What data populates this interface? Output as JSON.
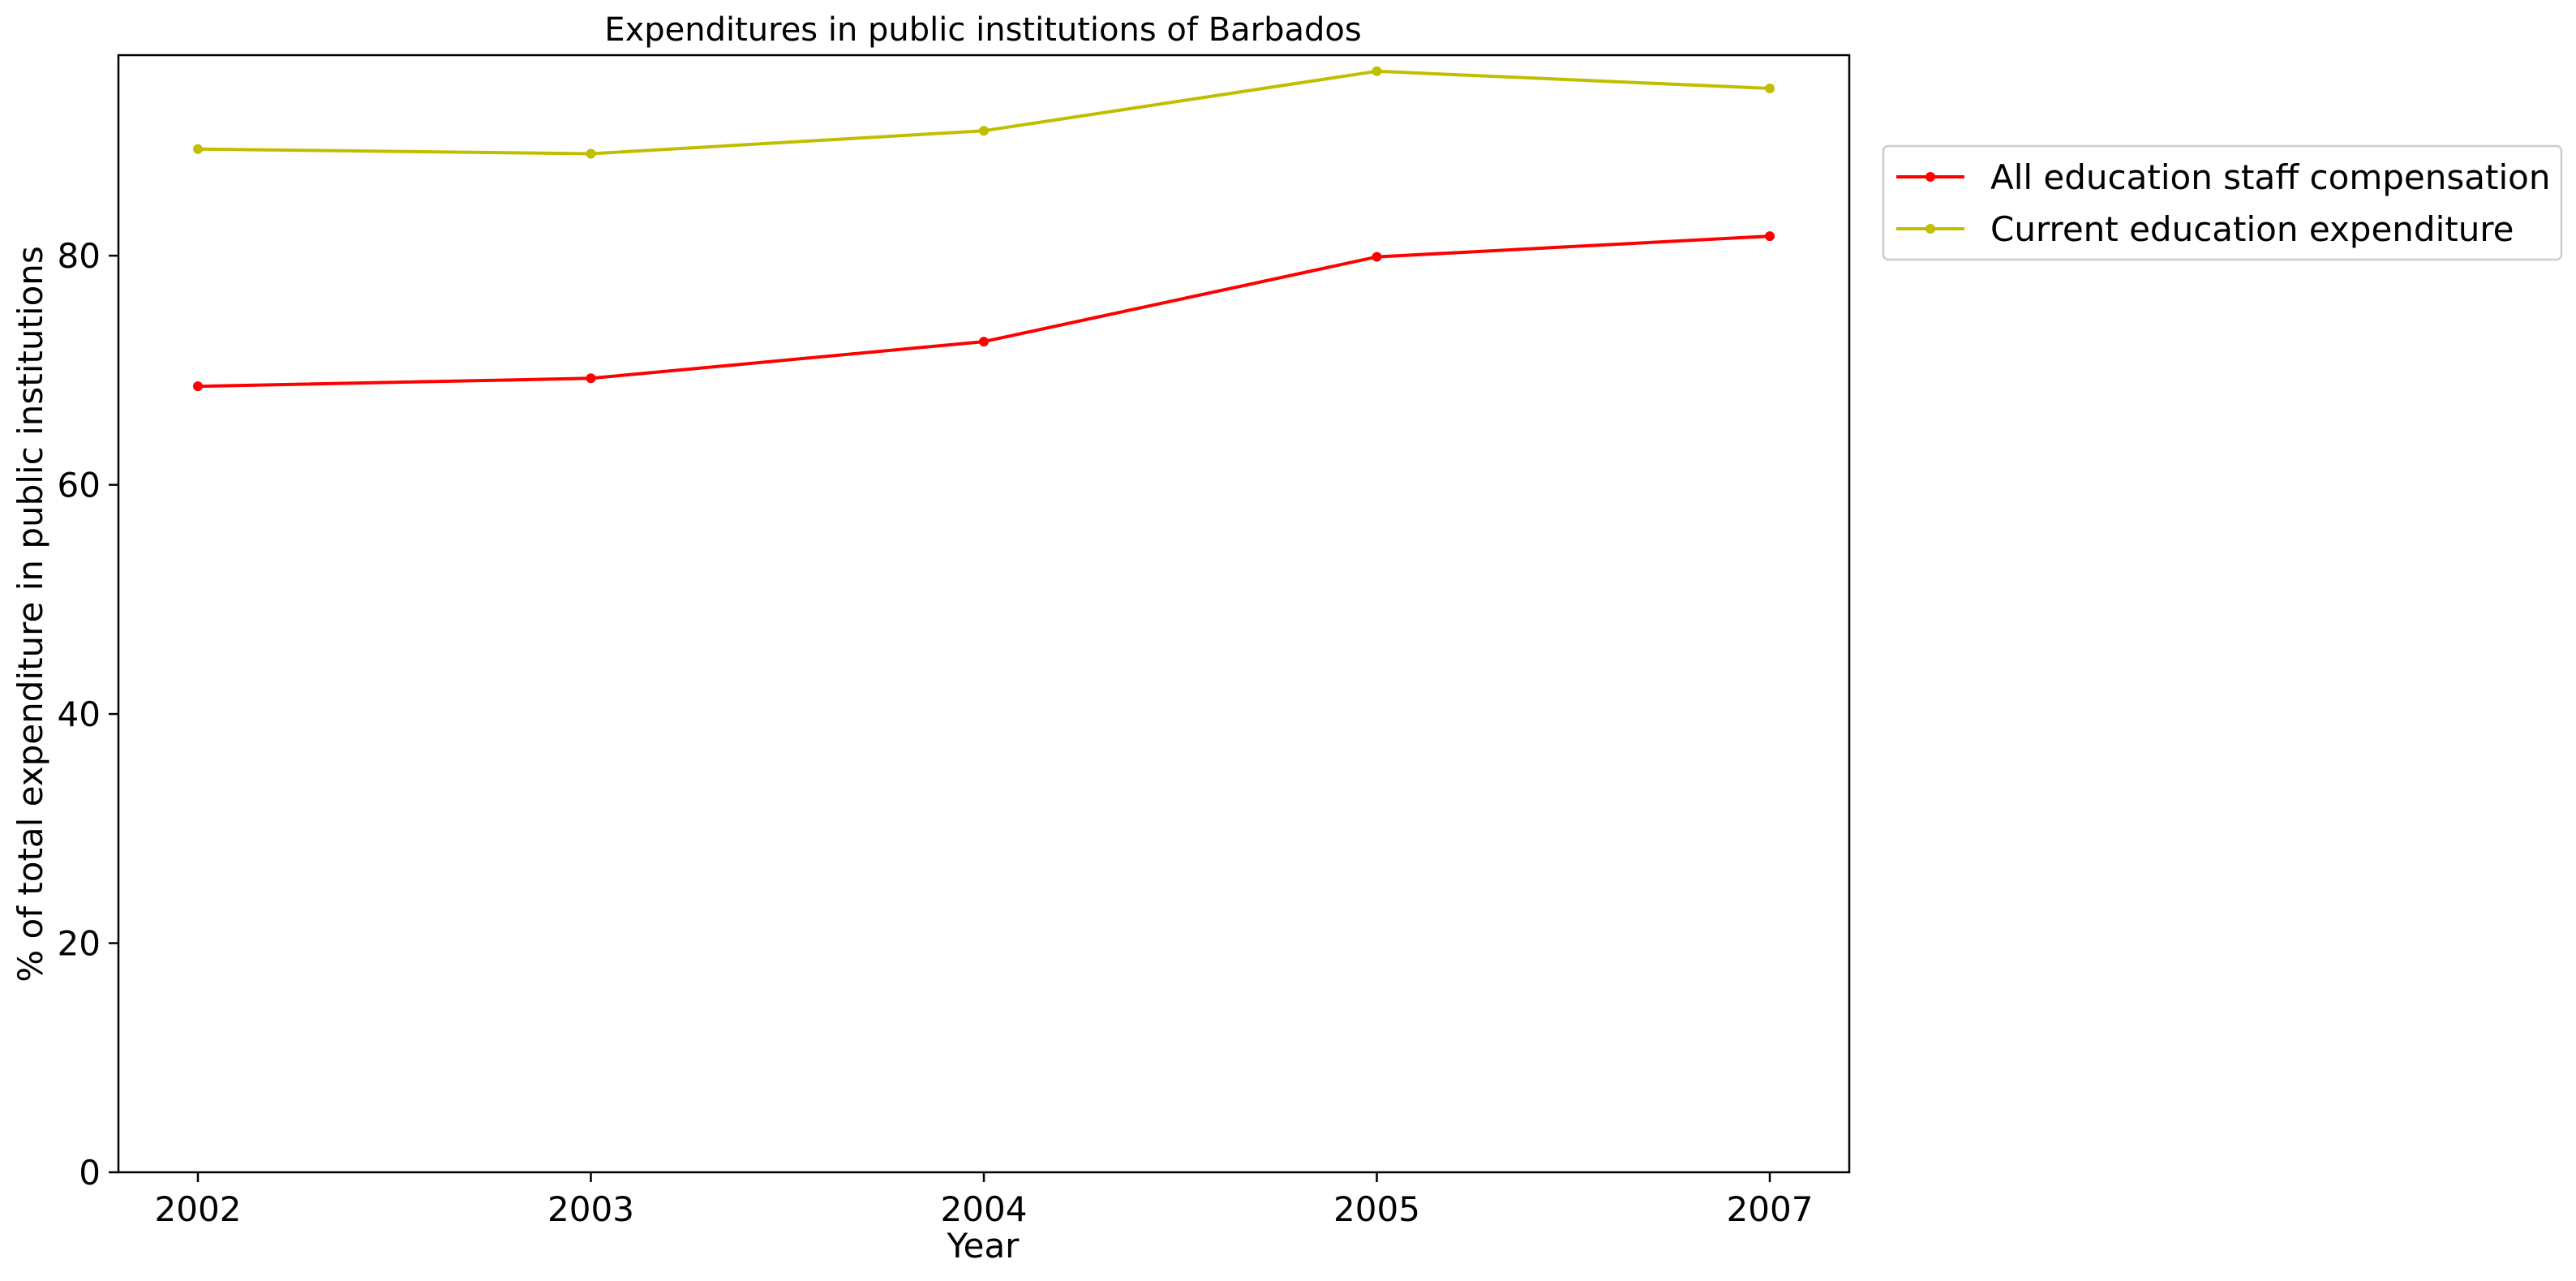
{
  "chart_data": {
    "type": "line",
    "title": "Expenditures in public institutions of Barbados",
    "xlabel": "Year",
    "ylabel": "% of total expenditure in public institutions",
    "categories": [
      "2002",
      "2003",
      "2004",
      "2005",
      "2007"
    ],
    "y_ticks": [
      "0",
      "20",
      "40",
      "60",
      "80"
    ],
    "ylim": [
      0,
      97.5
    ],
    "grid": false,
    "legend_position": "outside right, top",
    "series": [
      {
        "name": "All education staff compensation",
        "color": "#ff0000",
        "values": [
          68.6,
          69.3,
          72.5,
          79.9,
          81.7
        ]
      },
      {
        "name": "Current education expenditure",
        "color": "#bfbf00",
        "values": [
          89.3,
          88.9,
          90.9,
          96.1,
          94.6
        ]
      }
    ]
  }
}
